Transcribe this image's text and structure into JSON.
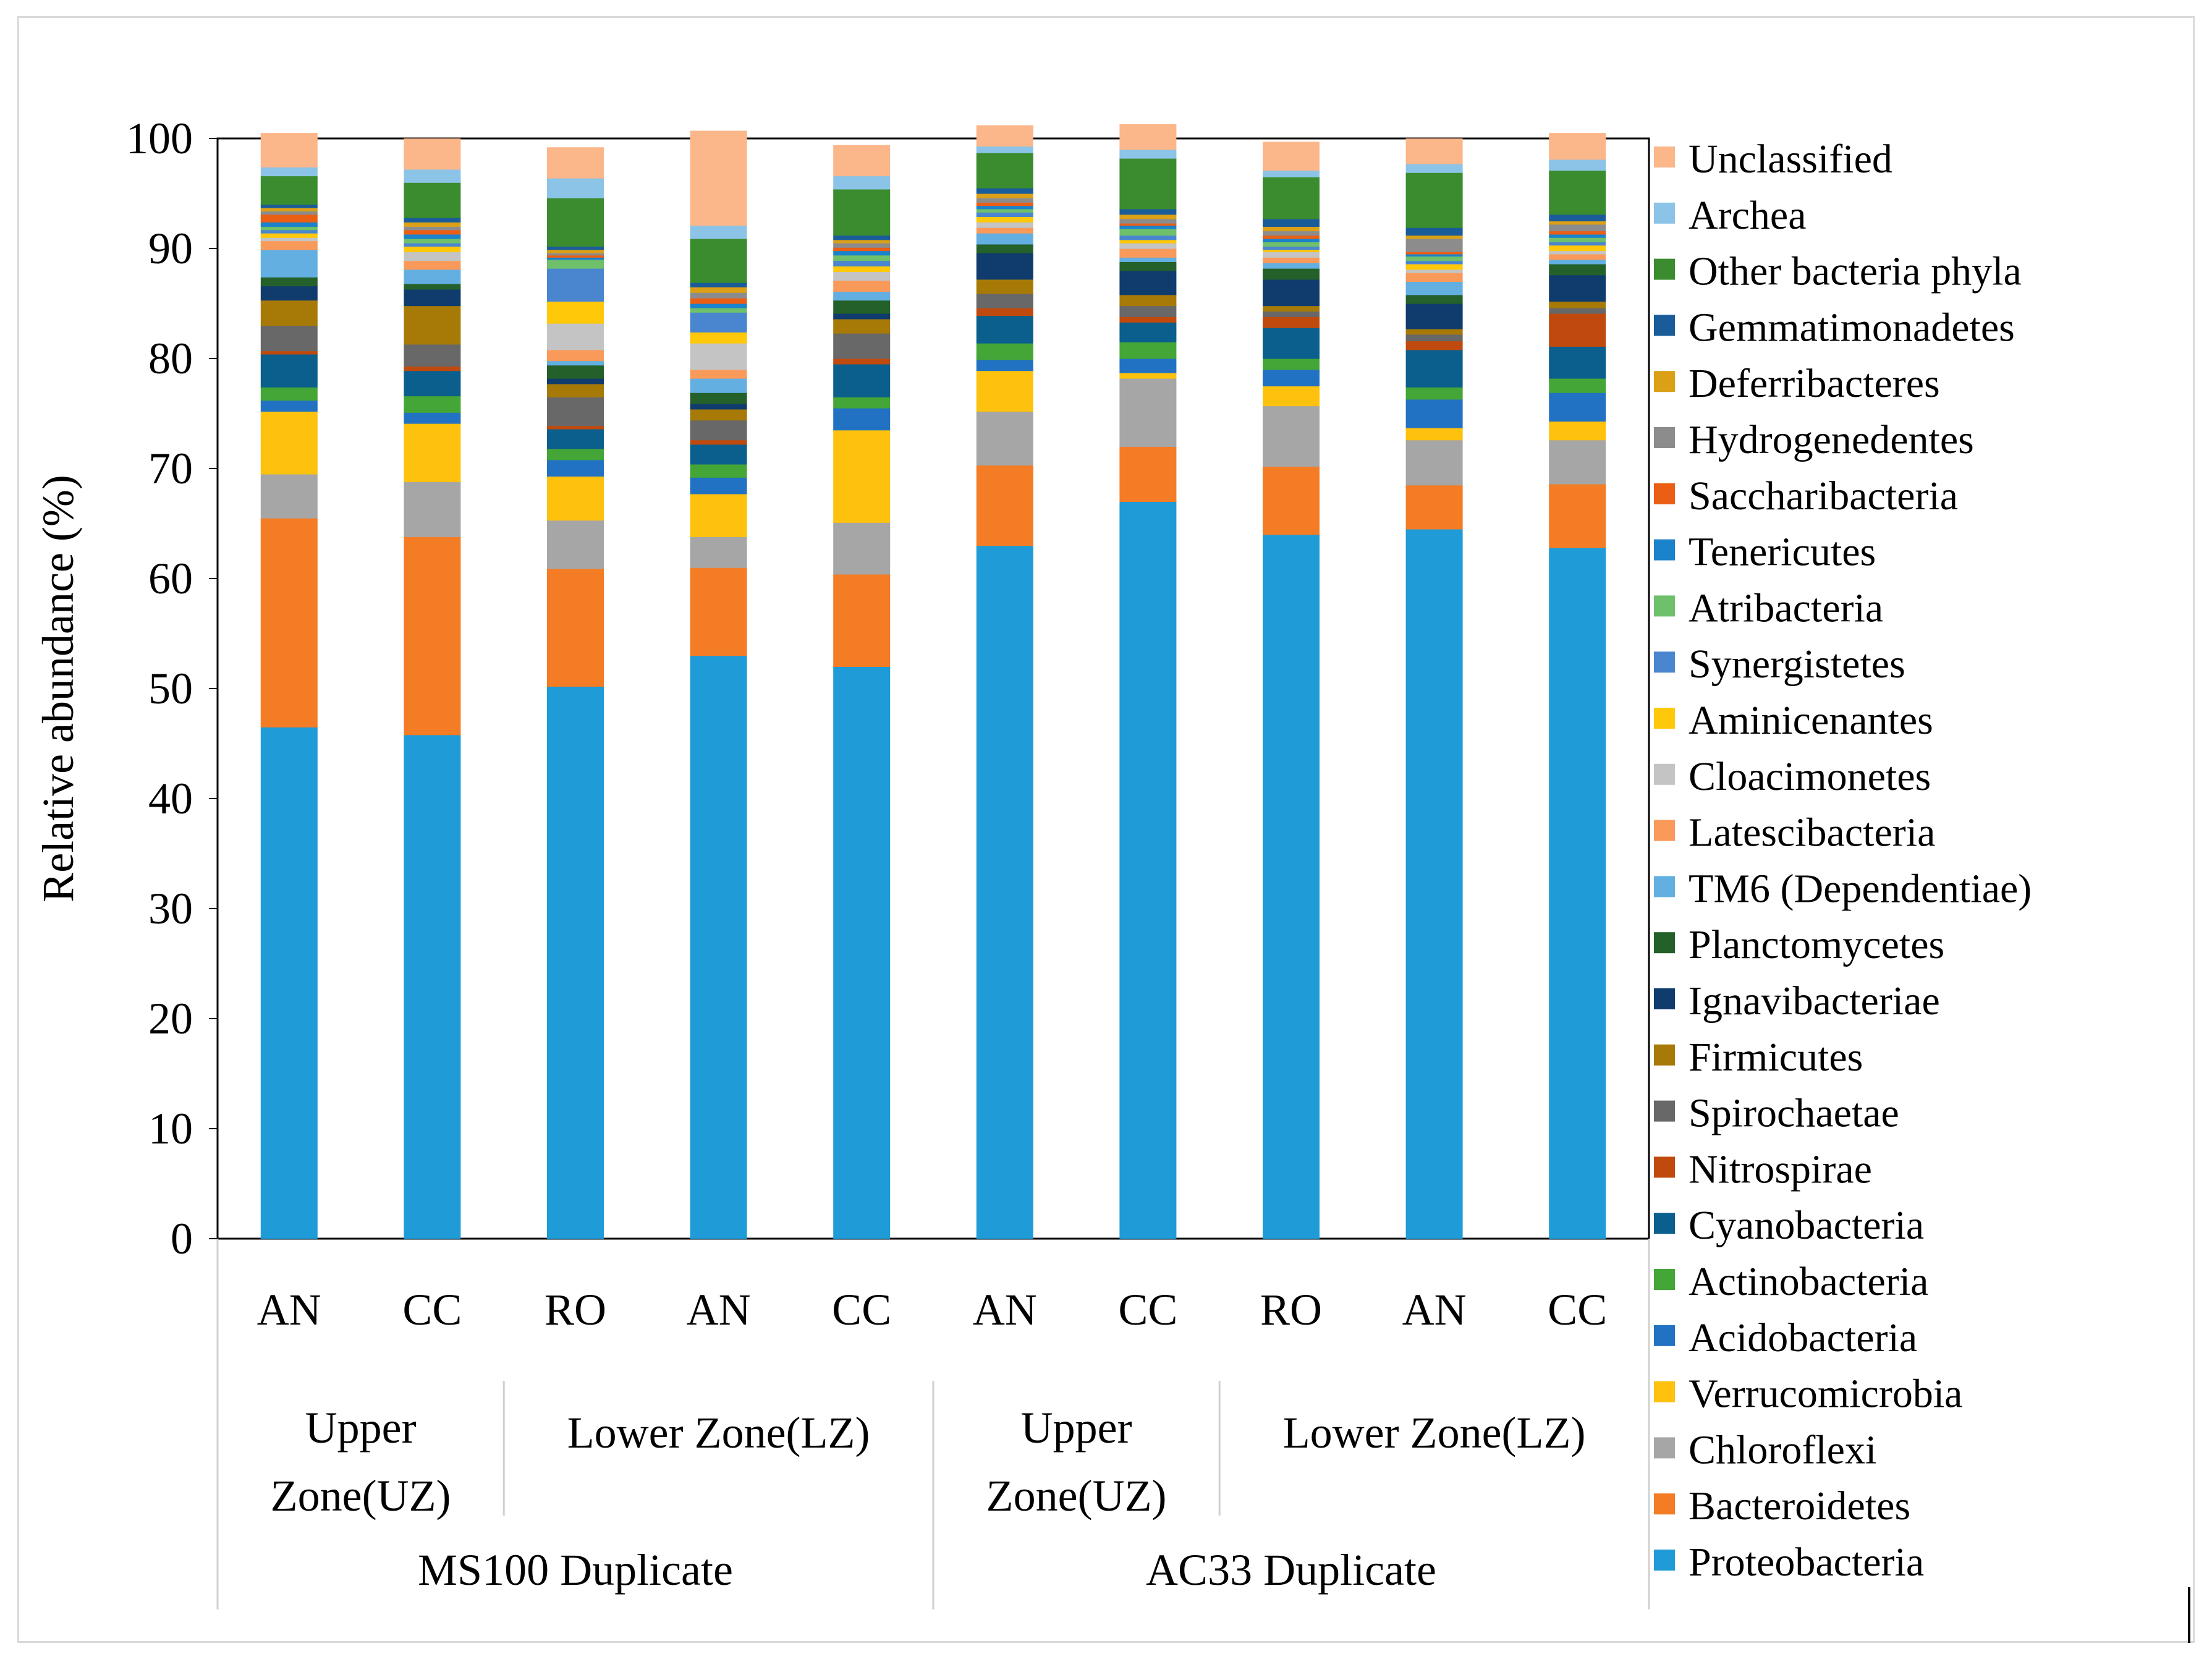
{
  "chart_data": {
    "type": "stacked-bar",
    "ylabel": "Relative abundance (%)",
    "ylim": [
      0,
      100
    ],
    "y_ticks": [
      0,
      10,
      20,
      30,
      40,
      50,
      60,
      70,
      80,
      90,
      100
    ],
    "categories": [
      "AN",
      "CC",
      "RO",
      "AN",
      "CC",
      "AN",
      "CC",
      "RO",
      "AN",
      "CC"
    ],
    "zone_groups": [
      {
        "label": "Upper Zone(UZ)",
        "lines": [
          "Upper",
          "Zone(UZ)"
        ],
        "bars": [
          0,
          1
        ]
      },
      {
        "label": "Lower Zone(LZ)",
        "lines": [
          "Lower Zone(LZ)"
        ],
        "bars": [
          2,
          3,
          4
        ]
      },
      {
        "label": "Upper Zone(UZ)",
        "lines": [
          "Upper",
          "Zone(UZ)"
        ],
        "bars": [
          5,
          6
        ]
      },
      {
        "label": "Lower Zone(LZ)",
        "lines": [
          "Lower Zone(LZ)"
        ],
        "bars": [
          7,
          8,
          9
        ]
      }
    ],
    "sample_groups": [
      {
        "label": "MS100 Duplicate",
        "bars": [
          0,
          1,
          2,
          3,
          4
        ]
      },
      {
        "label": "AC33 Duplicate",
        "bars": [
          5,
          6,
          7,
          8,
          9
        ]
      }
    ],
    "series": [
      {
        "name": "Proteobacteria",
        "color": "#1f9bd7",
        "values": [
          46.5,
          45.8,
          50.2,
          53.0,
          52.0,
          63.0,
          67.0,
          64.0,
          64.5,
          62.8
        ]
      },
      {
        "name": "Bacteroidetes",
        "color": "#f47c25",
        "values": [
          19.0,
          18.0,
          10.7,
          8.0,
          8.4,
          7.3,
          5.0,
          6.2,
          4.0,
          5.8
        ]
      },
      {
        "name": "Chloroflexi",
        "color": "#a6a6a6",
        "values": [
          4.0,
          5.0,
          4.4,
          2.8,
          4.7,
          4.9,
          6.2,
          5.5,
          4.1,
          4.0
        ]
      },
      {
        "name": "Verrucomicrobia",
        "color": "#fec20e",
        "values": [
          5.7,
          5.3,
          4.0,
          3.9,
          8.4,
          3.7,
          0.5,
          1.8,
          1.1,
          1.7
        ]
      },
      {
        "name": "Acidobacteria",
        "color": "#2272c3",
        "values": [
          1.0,
          1.0,
          1.5,
          1.5,
          2.0,
          1.0,
          1.3,
          1.5,
          2.6,
          2.6
        ]
      },
      {
        "name": "Actinobacteria",
        "color": "#44a636",
        "values": [
          1.2,
          1.5,
          1.0,
          1.2,
          1.0,
          1.5,
          1.5,
          1.0,
          1.1,
          1.3
        ]
      },
      {
        "name": "Cyanobacteria",
        "color": "#0b5f8c",
        "values": [
          3.0,
          2.3,
          1.8,
          1.8,
          3.0,
          2.5,
          1.8,
          2.8,
          3.4,
          2.9
        ]
      },
      {
        "name": "Nitrospirae",
        "color": "#c04a0d",
        "values": [
          0.3,
          0.4,
          0.3,
          0.4,
          0.5,
          0.7,
          0.5,
          1.0,
          0.8,
          3.0
        ]
      },
      {
        "name": "Spirochaetae",
        "color": "#686868",
        "values": [
          2.3,
          2.0,
          2.6,
          1.8,
          2.3,
          1.3,
          1.0,
          0.5,
          0.6,
          0.5
        ]
      },
      {
        "name": "Firmicutes",
        "color": "#a77a07",
        "values": [
          2.3,
          3.5,
          1.2,
          1.0,
          1.3,
          1.3,
          1.0,
          0.5,
          0.5,
          0.6
        ]
      },
      {
        "name": "Ignavibacteriae",
        "color": "#103c6d",
        "values": [
          1.3,
          1.5,
          0.5,
          0.5,
          0.5,
          2.4,
          2.2,
          2.4,
          2.3,
          2.4
        ]
      },
      {
        "name": "Planctomycetes",
        "color": "#24612a",
        "values": [
          0.8,
          0.5,
          1.2,
          1.0,
          1.2,
          0.8,
          0.8,
          1.0,
          0.8,
          1.0
        ]
      },
      {
        "name": "TM6 (Dependentiae)",
        "color": "#63afe2",
        "values": [
          2.5,
          1.3,
          0.4,
          1.3,
          0.8,
          1.0,
          0.4,
          0.5,
          1.2,
          0.4
        ]
      },
      {
        "name": "Latescibacteria",
        "color": "#f99a5a",
        "values": [
          0.8,
          0.8,
          1.0,
          0.8,
          1.0,
          0.5,
          0.8,
          0.5,
          0.8,
          0.5
        ]
      },
      {
        "name": "Cloacimonetes",
        "color": "#c4c4c4",
        "values": [
          0.3,
          0.8,
          2.4,
          2.4,
          0.8,
          0.5,
          0.5,
          0.5,
          0.3,
          0.3
        ]
      },
      {
        "name": "Aminicenantes",
        "color": "#ffc809",
        "values": [
          0.4,
          0.5,
          2.0,
          1.0,
          0.5,
          0.5,
          0.3,
          0.2,
          0.5,
          0.5
        ]
      },
      {
        "name": "Synergistetes",
        "color": "#4a86cf",
        "values": [
          0.3,
          0.3,
          3.0,
          1.8,
          0.5,
          0.4,
          0.4,
          0.3,
          0.3,
          0.3
        ]
      },
      {
        "name": "Atribacteria",
        "color": "#6fc06b",
        "values": [
          0.3,
          0.4,
          0.8,
          0.4,
          0.5,
          0.3,
          0.6,
          0.4,
          0.4,
          0.4
        ]
      },
      {
        "name": "Tenericutes",
        "color": "#1b82cc",
        "values": [
          0.4,
          0.4,
          0.2,
          0.4,
          0.4,
          0.3,
          0.3,
          0.3,
          0.2,
          0.3
        ]
      },
      {
        "name": "Saccharibacteria",
        "color": "#ea5f14",
        "values": [
          0.7,
          0.4,
          0.2,
          0.5,
          0.3,
          0.3,
          0.2,
          0.3,
          0.2,
          0.3
        ]
      },
      {
        "name": "Hydrogenedentes",
        "color": "#8c8c8c",
        "values": [
          0.3,
          0.3,
          0.2,
          0.5,
          0.4,
          0.4,
          0.4,
          0.4,
          1.2,
          0.6
        ]
      },
      {
        "name": "Deferribacteres",
        "color": "#dba016",
        "values": [
          0.3,
          0.4,
          0.3,
          0.5,
          0.3,
          0.4,
          0.4,
          0.4,
          0.3,
          0.3
        ]
      },
      {
        "name": "Gemmatimonadetes",
        "color": "#1a5c99",
        "values": [
          0.3,
          0.4,
          0.3,
          0.4,
          0.4,
          0.5,
          0.5,
          0.7,
          0.7,
          0.6
        ]
      },
      {
        "name": "Other bacteria phyla",
        "color": "#3a8c2e",
        "values": [
          2.6,
          3.2,
          4.4,
          4.0,
          4.2,
          3.2,
          4.6,
          3.8,
          5.0,
          4.0
        ]
      },
      {
        "name": "Archea",
        "color": "#8cc4e8",
        "values": [
          0.8,
          1.2,
          1.8,
          1.2,
          1.2,
          0.6,
          0.8,
          0.6,
          0.8,
          1.0
        ]
      },
      {
        "name": "Unclassified",
        "color": "#fbb68a",
        "values": [
          3.1,
          2.8,
          2.8,
          8.6,
          2.8,
          1.9,
          2.3,
          2.6,
          2.3,
          2.4
        ]
      }
    ]
  }
}
